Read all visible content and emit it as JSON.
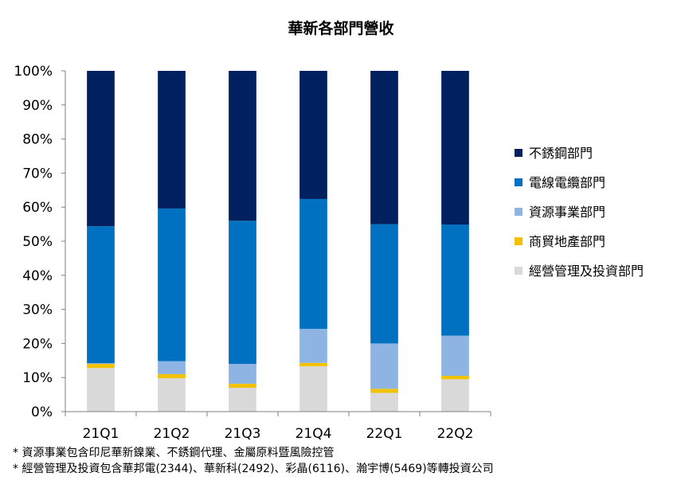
{
  "chart_data": {
    "type": "bar",
    "stacked": true,
    "title": "華新各部門營收",
    "xlabel": "",
    "ylabel": "",
    "ylim": [
      0,
      100
    ],
    "yticks": [
      "0%",
      "10%",
      "20%",
      "30%",
      "40%",
      "50%",
      "60%",
      "70%",
      "80%",
      "90%",
      "100%"
    ],
    "categories": [
      "21Q1",
      "21Q2",
      "21Q3",
      "21Q4",
      "22Q1",
      "22Q2"
    ],
    "grid": false,
    "legend_position": "right",
    "series": [
      {
        "name": "經營管理及投資部門",
        "color": "#d9d9d9",
        "values": [
          12.8,
          9.8,
          7.0,
          13.3,
          5.5,
          9.5
        ]
      },
      {
        "name": "商貿地產部門",
        "color": "#f2c200",
        "values": [
          1.2,
          1.2,
          1.2,
          1.0,
          1.2,
          1.0
        ]
      },
      {
        "name": "資源事業部門",
        "color": "#8eb4e3",
        "values": [
          0.2,
          3.8,
          5.8,
          10.0,
          13.3,
          11.8
        ]
      },
      {
        "name": "電線電纜部門",
        "color": "#0070c0",
        "values": [
          40.2,
          44.8,
          42.0,
          38.1,
          35.0,
          32.6
        ]
      },
      {
        "name": "不銹鋼部門",
        "color": "#002060",
        "values": [
          45.6,
          40.4,
          44.0,
          37.6,
          45.0,
          45.1
        ]
      }
    ]
  },
  "footnotes": [
    "* 資源事業包含印尼華新鎳業、不銹鋼代理、金屬原料暨風險控管",
    "* 經營管理及投資包含華邦電(2344)、華新科(2492)、彩晶(6116)、瀚宇博(5469)等轉投資公司"
  ]
}
